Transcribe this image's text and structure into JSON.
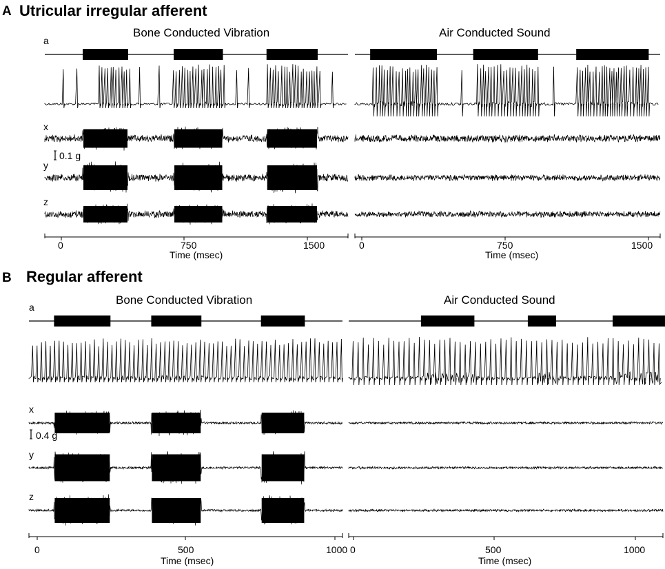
{
  "panel_a": {
    "letter": "A",
    "title": "Utricular irregular afferent",
    "left_title": "Bone Conducted Vibration",
    "right_title": "Air Conducted Sound",
    "row_labels": [
      "a",
      "x",
      "y",
      "z"
    ],
    "scale_label": "0.1 g",
    "left_ticks": [
      "0",
      "750",
      "1500"
    ],
    "right_ticks": [
      "0",
      "750",
      "1500"
    ],
    "xlabel": "Time (msec)"
  },
  "panel_b": {
    "letter": "B",
    "title": "Regular afferent",
    "left_title": "Bone Conducted Vibration",
    "right_title": "Air Conducted Sound",
    "row_labels": [
      "a",
      "x",
      "y",
      "z"
    ],
    "scale_label": "0.4 g",
    "left_ticks": [
      "0",
      "500",
      "1000"
    ],
    "right_ticks": [
      "0",
      "500",
      "1000"
    ],
    "xlabel": "Time (msec)"
  },
  "chart_data": [
    {
      "type": "line",
      "title": "Utricular irregular afferent",
      "xlabel": "Time (msec)",
      "xlim": [
        0,
        1600
      ],
      "series": [
        {
          "name": "Bone Conducted Vibration",
          "stimulus_ms": [
            [
              200,
              440
            ],
            [
              680,
              940
            ],
            [
              1170,
              1440
            ]
          ]
        },
        {
          "name": "Air Conducted Sound",
          "stimulus_ms": [
            [
              80,
              430
            ],
            [
              620,
              960
            ],
            [
              1160,
              1540
            ]
          ]
        }
      ]
    },
    {
      "type": "line",
      "title": "Regular afferent",
      "xlabel": "Time (msec)",
      "xlim": [
        0,
        1000
      ],
      "series": [
        {
          "name": "Bone Conducted Vibration",
          "stimulus_ms": [
            [
              80,
              260
            ],
            [
              390,
              550
            ],
            [
              740,
              880
            ]
          ]
        },
        {
          "name": "Air Conducted Sound",
          "stimulus_ms": [
            [
              230,
              400
            ],
            [
              570,
              660
            ],
            [
              840,
              1010
            ]
          ]
        }
      ]
    }
  ]
}
